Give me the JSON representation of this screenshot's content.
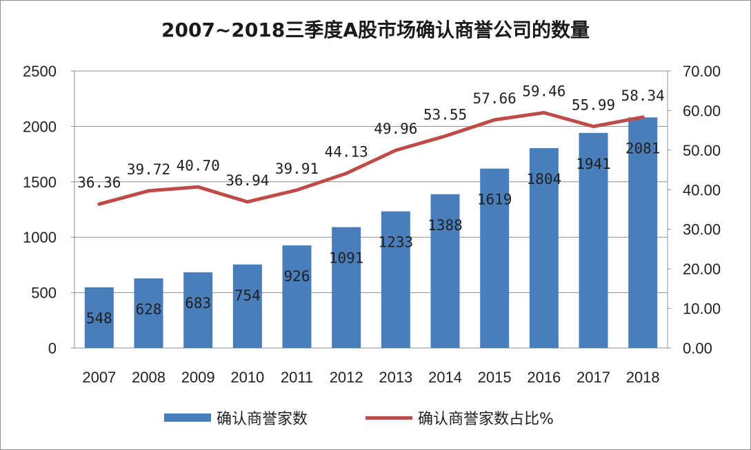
{
  "chart_data": {
    "type": "bar",
    "title": "2007~2018三季度A股市场确认商誉公司的数量",
    "categories": [
      "2007",
      "2008",
      "2009",
      "2010",
      "2011",
      "2012",
      "2013",
      "2014",
      "2015",
      "2016",
      "2017",
      "2018"
    ],
    "series": [
      {
        "name": "确认商誉家数",
        "type": "bar",
        "axis": "left",
        "values": [
          548,
          628,
          683,
          754,
          926,
          1091,
          1233,
          1388,
          1619,
          1804,
          1941,
          2081
        ]
      },
      {
        "name": "确认商誉家数占比%",
        "type": "line",
        "axis": "right",
        "values": [
          36.36,
          39.72,
          40.7,
          36.94,
          39.91,
          44.13,
          49.96,
          53.55,
          57.66,
          59.46,
          55.99,
          58.34
        ]
      }
    ],
    "y_left": {
      "ylim": [
        0,
        2500
      ],
      "ticks": [
        "0",
        "500",
        "1000",
        "1500",
        "2000",
        "2500"
      ]
    },
    "y_right": {
      "ylim": [
        0,
        70
      ],
      "ticks": [
        "0.00",
        "10.00",
        "20.00",
        "30.00",
        "40.00",
        "50.00",
        "60.00",
        "70.00"
      ]
    },
    "data_labels_bar": [
      "548",
      "628",
      "683",
      "754",
      "926",
      "1091",
      "1233",
      "1388",
      "1619",
      "1804",
      "1941",
      "2081"
    ],
    "data_labels_line": [
      "36.36",
      "39.72",
      "40.70",
      "36.94",
      "39.91",
      "44.13",
      "49.96",
      "53.55",
      "57.66",
      "59.46",
      "55.99",
      "58.34"
    ],
    "grid": true,
    "legend_position": "bottom",
    "colors": {
      "bar": "#4a7ebb",
      "line": "#be4b48",
      "grid": "#8c8c8c"
    }
  }
}
